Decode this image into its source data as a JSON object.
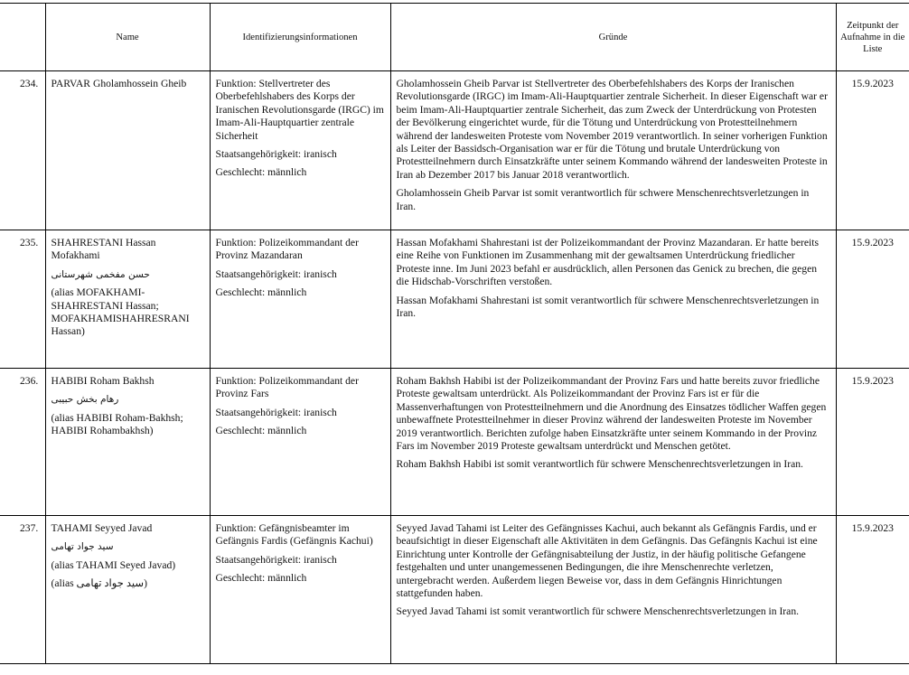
{
  "headers": {
    "number": "",
    "name": "Name",
    "identification": "Identifizierungsinformationen",
    "reasons": "Gründe",
    "date": "Zeitpunkt der Aufnahme in die Liste"
  },
  "rows": [
    {
      "number": "234.",
      "name": [
        "PARVAR Gholamhossein Gheib"
      ],
      "identification": [
        "Funktion: Stellvertreter des Oberbefehlshabers des Korps der Iranischen Revolutionsgarde (IRGC) im Imam-Ali-Hauptquartier zentrale Sicherheit",
        "Staatsangehörigkeit: iranisch",
        "Geschlecht: männlich"
      ],
      "reasons": [
        "Gholamhossein Gheib Parvar ist Stellvertreter des Oberbefehlshabers des Korps der Iranischen Revolutionsgarde (IRGC) im Imam-Ali-Hauptquartier zentrale Sicherheit. In dieser Eigenschaft war er beim Imam-Ali-Hauptquartier zentrale Sicherheit, das zum Zweck der Unterdrückung von Protesten der Bevölkerung eingerichtet wurde, für die Tötung und Unterdrückung von Protestteilnehmern während der landesweiten Proteste vom November 2019 verantwortlich. In seiner vorherigen Funktion als Leiter der Bassidsch-Organisation war er für die Tötung und brutale Unterdrückung von Protestteilnehmern durch Einsatzkräfte unter seinem Kommando während der landesweiten Proteste in Iran ab Dezember 2017 bis Januar 2018 verantwortlich.",
        "Gholamhossein Gheib Parvar ist somit verantwortlich für schwere Menschenrechtsverletzungen in Iran."
      ],
      "date": "15.9.2023"
    },
    {
      "number": "235.",
      "name": [
        "SHAHRESTANI Hassan Mofakhami",
        "حسن مفخمی شهرستانی",
        "(alias MOFAKHAMI-SHAHRESTANI Hassan; MOFAKHAMISHAHRESRANI Hassan)"
      ],
      "identification": [
        "Funktion: Polizeikommandant der Provinz Mazandaran",
        "Staatsangehörigkeit: iranisch",
        "Geschlecht: männlich"
      ],
      "reasons": [
        "Hassan Mofakhami Shahrestani ist der Polizeikommandant der Provinz Mazandaran. Er hatte bereits eine Reihe von Funktionen im Zusammenhang mit der gewaltsamen Unterdrückung friedlicher Proteste inne. Im Juni 2023 befahl er ausdrücklich, allen Personen das Genick zu brechen, die gegen die Hidschab-Vorschriften verstoßen.",
        "Hassan Mofakhami Shahrestani ist somit verantwortlich für schwere Menschenrechtsverletzungen in Iran."
      ],
      "date": "15.9.2023"
    },
    {
      "number": "236.",
      "name": [
        "HABIBI Roham Bakhsh",
        "رهام بخش حبیبی",
        "(alias HABIBI Roham-Bakhsh; HABIBI Rohambakhsh)"
      ],
      "identification": [
        "Funktion: Polizeikommandant der Provinz Fars",
        "Staatsangehörigkeit: iranisch",
        "Geschlecht: männlich"
      ],
      "reasons": [
        "Roham Bakhsh Habibi ist der Polizeikommandant der Provinz Fars und hatte bereits zuvor friedliche Proteste gewaltsam unterdrückt. Als Polizeikommandant der Provinz Fars ist er für die Massenverhaftungen von Protestteilnehmern und die Anordnung des Einsatzes tödlicher Waffen gegen unbewaffnete Protestteilnehmer in dieser Provinz während der landesweiten Proteste im November 2019 verantwortlich. Berichten zufolge haben Einsatzkräfte unter seinem Kommando in der Provinz Fars im November 2019 Proteste gewaltsam unterdrückt und Menschen getötet.",
        "Roham Bakhsh Habibi ist somit verantwortlich für schwere Menschenrechtsverletzungen in Iran."
      ],
      "date": "15.9.2023"
    },
    {
      "number": "237.",
      "name": [
        "TAHAMI Seyyed Javad",
        "سید جواد تهامی",
        "(alias TAHAMI Seyed Javad)",
        "(alias سید جواد تهامی)"
      ],
      "identification": [
        "Funktion: Gefängnisbeamter im Gefängnis Fardis (Gefängnis Kachui)",
        "Staatsangehörigkeit: iranisch",
        "Geschlecht: männlich"
      ],
      "reasons": [
        "Seyyed Javad Tahami ist Leiter des Gefängnisses Kachui, auch bekannt als Gefängnis Fardis, und er beaufsichtigt in dieser Eigenschaft alle Aktivitäten in dem Gefängnis. Das Gefängnis Kachui ist eine Einrichtung unter Kontrolle der Gefängnisabteilung der Justiz, in der häufig politische Gefangene festgehalten und unter unangemessenen Bedingungen, die ihre Menschenrechte verletzen, untergebracht werden. Außerdem liegen Beweise vor, dass in dem Gefängnis Hinrichtungen stattgefunden haben.",
        "Seyyed Javad Tahami ist somit verantwortlich für schwere Menschenrechtsverletzungen in Iran."
      ],
      "date": "15.9.2023"
    }
  ]
}
